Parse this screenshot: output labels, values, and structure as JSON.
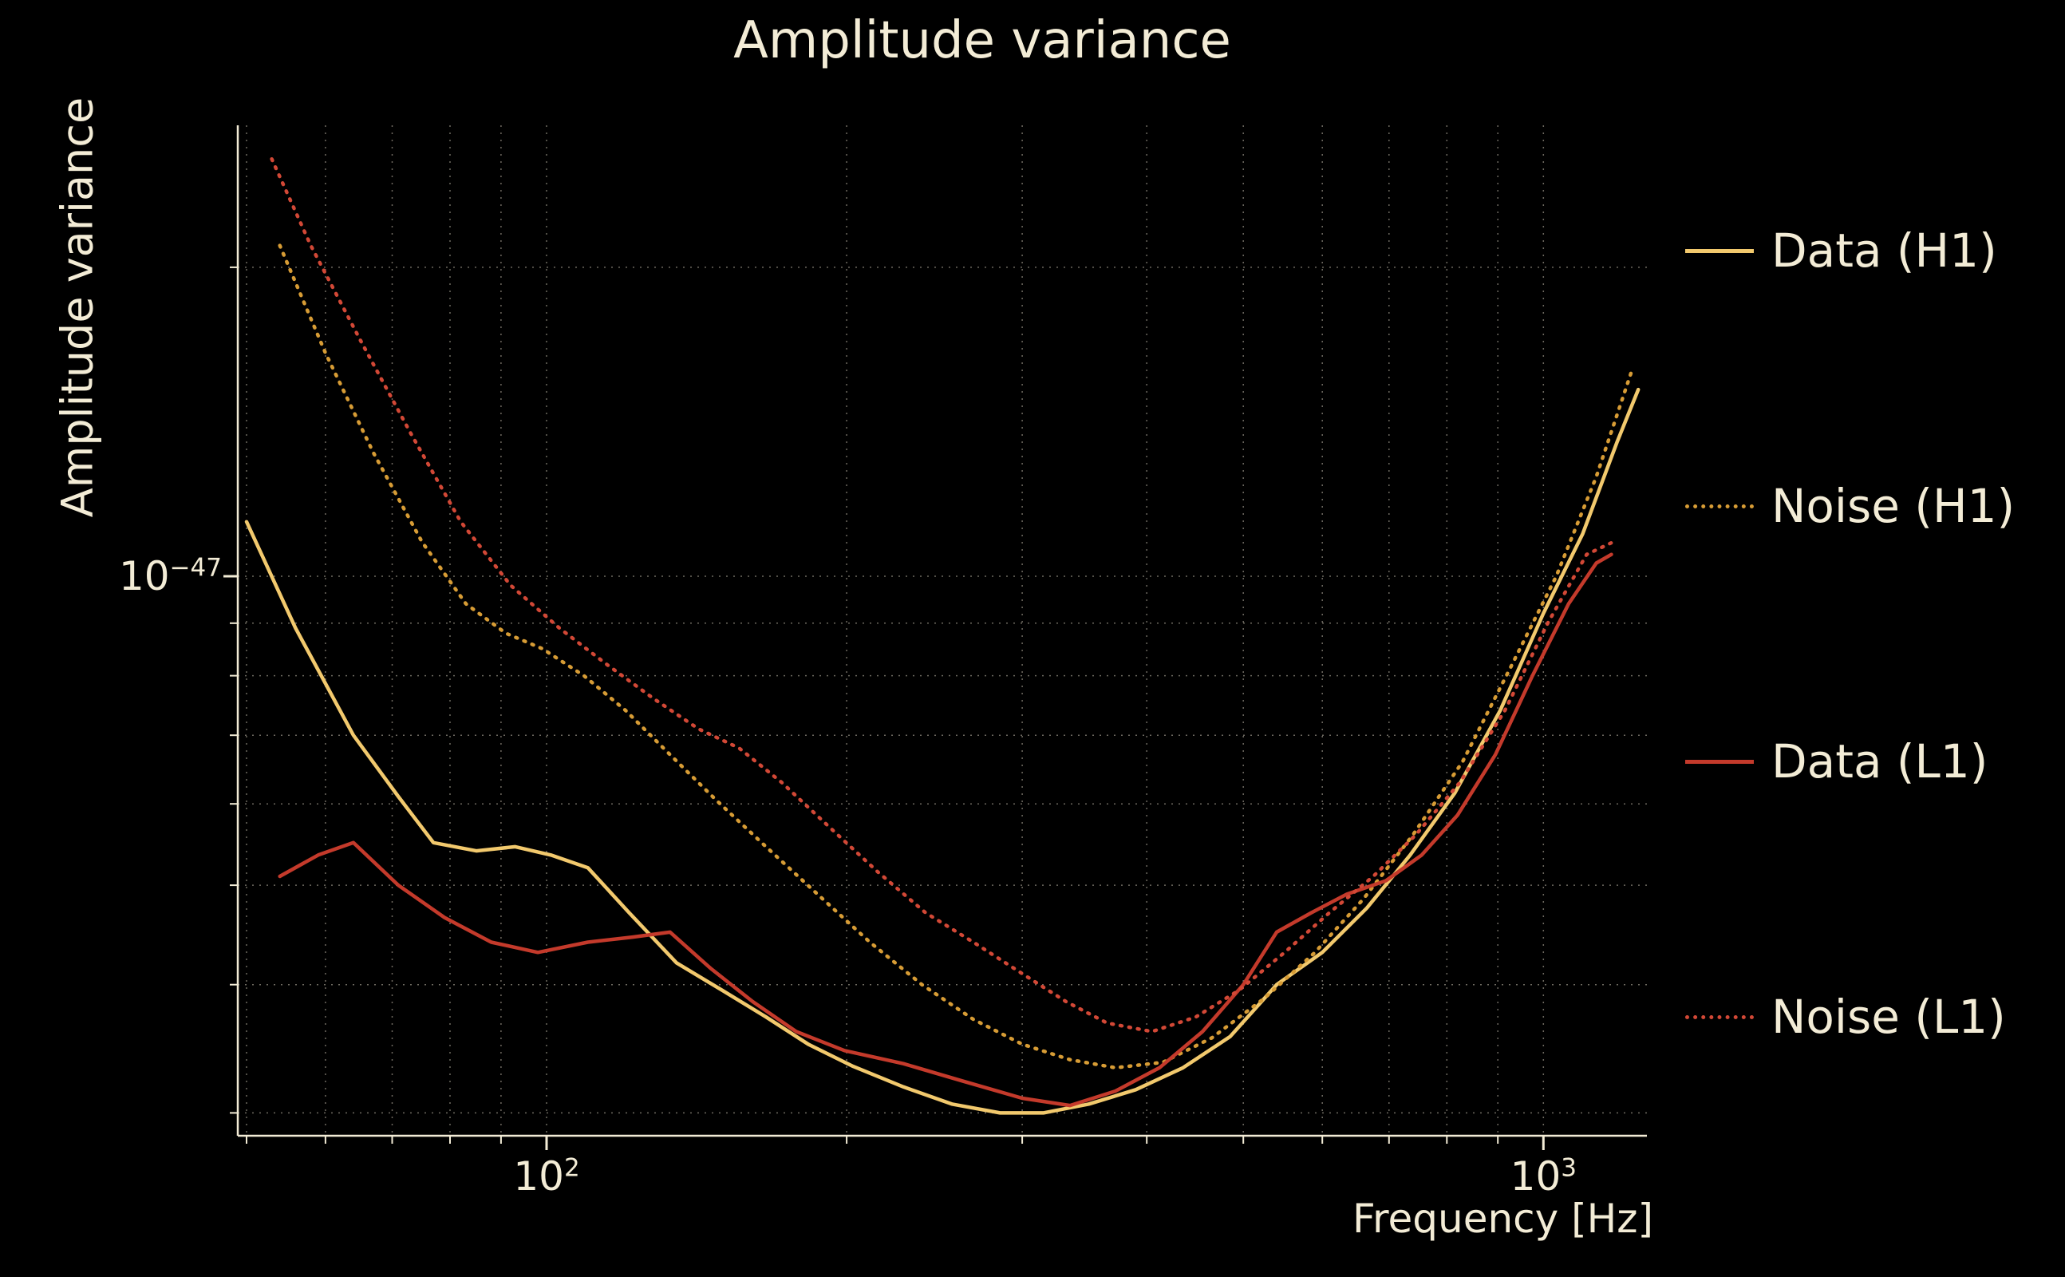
{
  "chart_data": {
    "type": "line",
    "title": "Amplitude variance",
    "xlabel": "Frequency [Hz]",
    "ylabel": "Amplitude variance",
    "x_scale": "log",
    "y_scale": "log",
    "xlim": [
      49,
      1270
    ],
    "ylim": [
      2.85e-48,
      2.75e-47
    ],
    "legend_position": "right-outside",
    "colors": {
      "background": "#000000",
      "text": "#f3ecd6",
      "grid": "#f3ecd6"
    },
    "grid": {
      "x_values": [
        50,
        60,
        70,
        80,
        90,
        100,
        200,
        300,
        400,
        500,
        600,
        700,
        800,
        900,
        1000
      ],
      "y_values": [
        3e-48,
        4e-48,
        5e-48,
        6e-48,
        7e-48,
        8e-48,
        9e-48,
        1e-47,
        2e-47
      ]
    },
    "xticks": {
      "major": [
        {
          "value": 100,
          "mantissa": "10",
          "exponent": "2"
        },
        {
          "value": 1000,
          "mantissa": "10",
          "exponent": "3"
        }
      ],
      "minor_values": [
        50,
        60,
        70,
        80,
        90,
        200,
        300,
        400,
        500,
        600,
        700,
        800,
        900
      ]
    },
    "yticks": {
      "major": [
        {
          "value": 1e-47,
          "mantissa": "10",
          "exponent": "−47"
        }
      ],
      "minor_values": [
        3e-48,
        4e-48,
        5e-48,
        6e-48,
        7e-48,
        8e-48,
        9e-48,
        2e-47
      ]
    },
    "series": [
      {
        "id": "data-h1",
        "name": "Data (H1)",
        "color": "#f2c96d",
        "style": "solid",
        "points": [
          [
            50,
            1.13e-47
          ],
          [
            56,
            8.9e-48
          ],
          [
            64,
            7e-48
          ],
          [
            71,
            6.1e-48
          ],
          [
            77,
            5.5e-48
          ],
          [
            85,
            5.4e-48
          ],
          [
            93,
            5.45e-48
          ],
          [
            101,
            5.35e-48
          ],
          [
            110,
            5.2e-48
          ],
          [
            121,
            4.7e-48
          ],
          [
            135,
            4.2e-48
          ],
          [
            150,
            3.95e-48
          ],
          [
            166,
            3.72e-48
          ],
          [
            183,
            3.5e-48
          ],
          [
            203,
            3.33e-48
          ],
          [
            228,
            3.18e-48
          ],
          [
            255,
            3.06e-48
          ],
          [
            285,
            3e-48
          ],
          [
            315,
            3e-48
          ],
          [
            350,
            3.06e-48
          ],
          [
            390,
            3.16e-48
          ],
          [
            435,
            3.32e-48
          ],
          [
            485,
            3.56e-48
          ],
          [
            540,
            4e-48
          ],
          [
            600,
            4.3e-48
          ],
          [
            665,
            4.75e-48
          ],
          [
            735,
            5.35e-48
          ],
          [
            815,
            6.15e-48
          ],
          [
            905,
            7.4e-48
          ],
          [
            1000,
            9.2e-48
          ],
          [
            1095,
            1.1e-47
          ],
          [
            1185,
            1.35e-47
          ],
          [
            1245,
            1.52e-47
          ]
        ]
      },
      {
        "id": "noise-h1",
        "name": "Noise (H1)",
        "color": "#d79c35",
        "style": "dotted",
        "points": [
          [
            54,
            2.1e-47
          ],
          [
            60,
            1.65e-47
          ],
          [
            67,
            1.32e-47
          ],
          [
            75,
            1.08e-47
          ],
          [
            83,
            9.4e-48
          ],
          [
            91,
            8.8e-48
          ],
          [
            99,
            8.5e-48
          ],
          [
            109,
            8e-48
          ],
          [
            120,
            7.4e-48
          ],
          [
            133,
            6.7e-48
          ],
          [
            148,
            6.05e-48
          ],
          [
            166,
            5.45e-48
          ],
          [
            187,
            4.9e-48
          ],
          [
            211,
            4.4e-48
          ],
          [
            238,
            4e-48
          ],
          [
            268,
            3.7e-48
          ],
          [
            300,
            3.5e-48
          ],
          [
            335,
            3.38e-48
          ],
          [
            372,
            3.32e-48
          ],
          [
            415,
            3.36e-48
          ],
          [
            465,
            3.55e-48
          ],
          [
            525,
            3.88e-48
          ],
          [
            590,
            4.3e-48
          ],
          [
            660,
            4.85e-48
          ],
          [
            740,
            5.6e-48
          ],
          [
            830,
            6.6e-48
          ],
          [
            930,
            8.2e-48
          ],
          [
            1030,
            1e-47
          ],
          [
            1130,
            1.25e-47
          ],
          [
            1225,
            1.58e-47
          ]
        ]
      },
      {
        "id": "data-l1",
        "name": "Data (L1)",
        "color": "#c43a2b",
        "style": "solid",
        "points": [
          [
            54,
            5.1e-48
          ],
          [
            59,
            5.35e-48
          ],
          [
            64,
            5.5e-48
          ],
          [
            71,
            5e-48
          ],
          [
            79,
            4.65e-48
          ],
          [
            88,
            4.4e-48
          ],
          [
            98,
            4.3e-48
          ],
          [
            110,
            4.4e-48
          ],
          [
            122,
            4.45e-48
          ],
          [
            133,
            4.5e-48
          ],
          [
            146,
            4.15e-48
          ],
          [
            161,
            3.85e-48
          ],
          [
            178,
            3.6e-48
          ],
          [
            199,
            3.45e-48
          ],
          [
            228,
            3.35e-48
          ],
          [
            262,
            3.22e-48
          ],
          [
            300,
            3.1e-48
          ],
          [
            335,
            3.05e-48
          ],
          [
            372,
            3.15e-48
          ],
          [
            412,
            3.32e-48
          ],
          [
            455,
            3.6e-48
          ],
          [
            500,
            4e-48
          ],
          [
            540,
            4.5e-48
          ],
          [
            585,
            4.7e-48
          ],
          [
            635,
            4.9e-48
          ],
          [
            695,
            5.05e-48
          ],
          [
            755,
            5.35e-48
          ],
          [
            820,
            5.85e-48
          ],
          [
            895,
            6.7e-48
          ],
          [
            975,
            8e-48
          ],
          [
            1060,
            9.4e-48
          ],
          [
            1130,
            1.03e-47
          ],
          [
            1170,
            1.05e-47
          ]
        ]
      },
      {
        "id": "noise-l1",
        "name": "Noise (L1)",
        "color": "#d24836",
        "style": "dotted",
        "points": [
          [
            53,
            2.55e-47
          ],
          [
            58,
            2.1e-47
          ],
          [
            65,
            1.7e-47
          ],
          [
            73,
            1.38e-47
          ],
          [
            82,
            1.13e-47
          ],
          [
            92,
            9.8e-48
          ],
          [
            103,
            8.9e-48
          ],
          [
            115,
            8.2e-48
          ],
          [
            128,
            7.6e-48
          ],
          [
            142,
            7.1e-48
          ],
          [
            156,
            6.8e-48
          ],
          [
            172,
            6.3e-48
          ],
          [
            192,
            5.7e-48
          ],
          [
            215,
            5.15e-48
          ],
          [
            240,
            4.7e-48
          ],
          [
            268,
            4.4e-48
          ],
          [
            300,
            4.1e-48
          ],
          [
            332,
            3.85e-48
          ],
          [
            365,
            3.67e-48
          ],
          [
            405,
            3.6e-48
          ],
          [
            448,
            3.72e-48
          ],
          [
            495,
            3.95e-48
          ],
          [
            550,
            4.3e-48
          ],
          [
            610,
            4.7e-48
          ],
          [
            675,
            5.1e-48
          ],
          [
            745,
            5.6e-48
          ],
          [
            825,
            6.3e-48
          ],
          [
            915,
            7.4e-48
          ],
          [
            1010,
            9e-48
          ],
          [
            1105,
            1.05e-47
          ],
          [
            1175,
            1.08e-47
          ]
        ]
      }
    ]
  }
}
